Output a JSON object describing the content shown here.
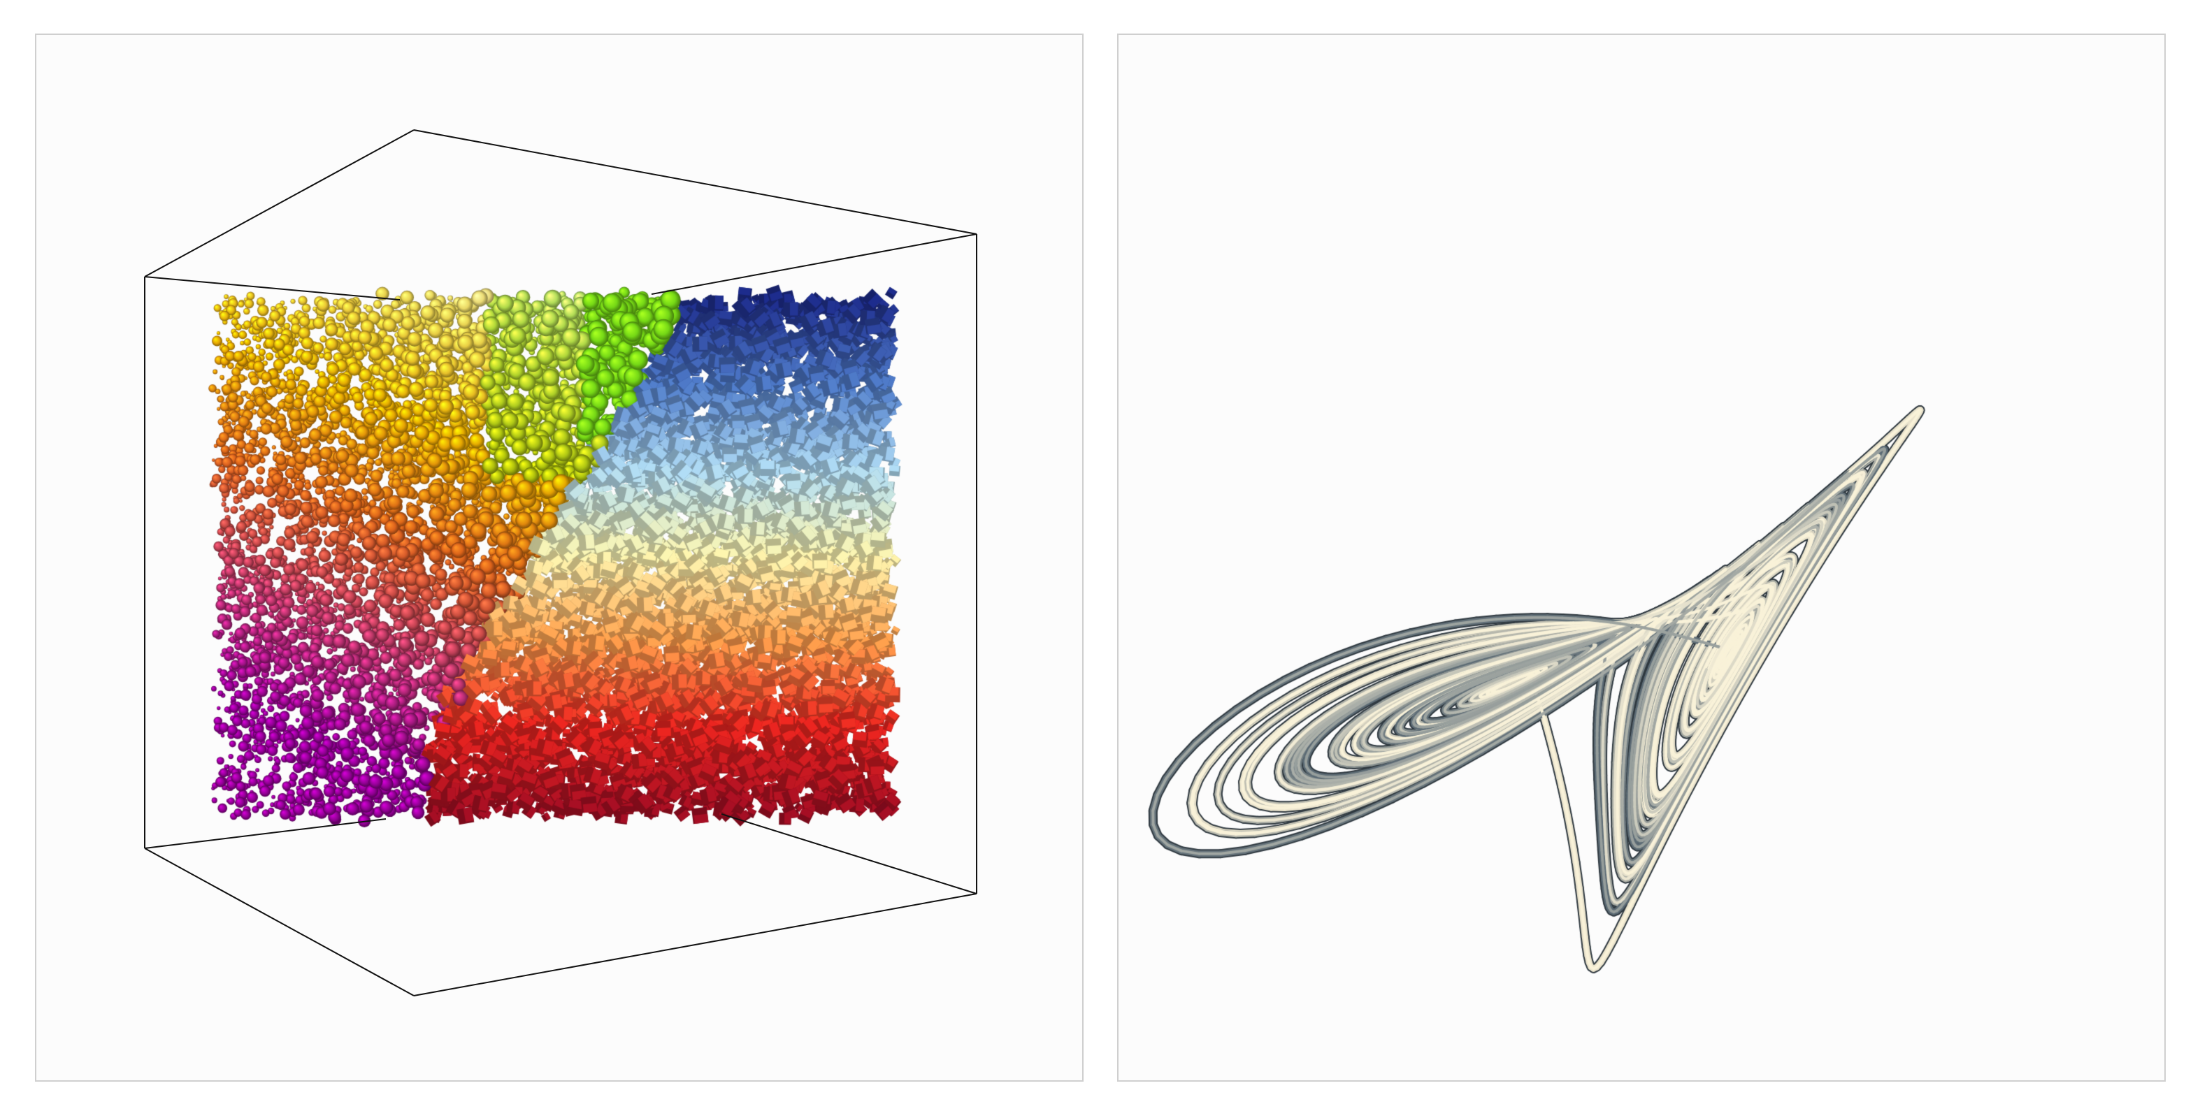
{
  "panels": [
    {
      "id": "scatter3d",
      "content": "3d-particle-cube",
      "box": "wireframe-bounding-box",
      "point_count": 9000,
      "markers": [
        "sphere",
        "cube"
      ],
      "colors": {
        "box_edge": "#111111",
        "sphere_gradient": [
          "#ffffff",
          "#f5e05a",
          "#f2b400",
          "#e8681c",
          "#c23a6a",
          "#9a009c"
        ],
        "sphere_highlight": "#7be317",
        "cube_gradient": [
          "#1c2a86",
          "#4d78c2",
          "#a9d3ea",
          "#f2eba8",
          "#f59a4a",
          "#e3241e",
          "#9e0d22"
        ]
      }
    },
    {
      "id": "lorenz",
      "content": "lorenz-attractor-tube",
      "colors": {
        "tube_light": "#ede6cf",
        "tube_dark": "#5b6a74",
        "tube_shadow": "#2f3940"
      }
    }
  ]
}
